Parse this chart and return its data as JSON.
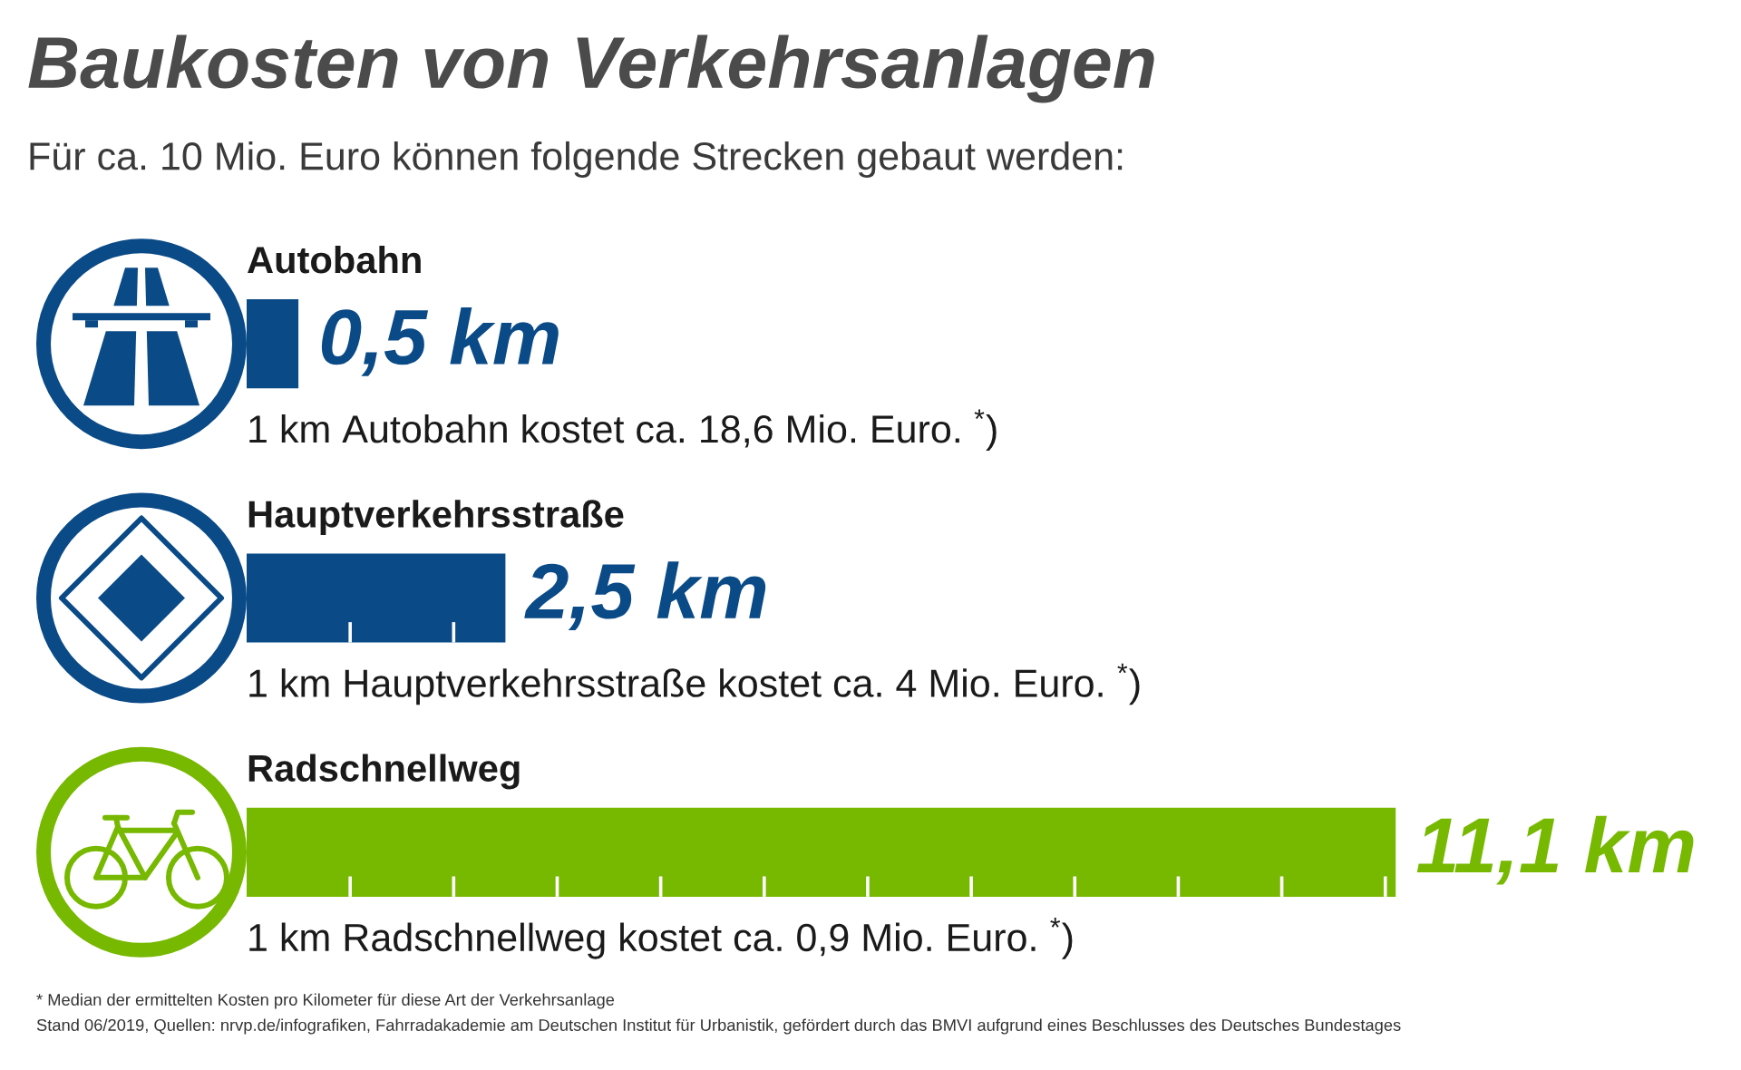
{
  "chart_data": {
    "type": "bar",
    "orientation": "horizontal",
    "title": "Baukosten von Verkehrsanlagen",
    "subtitle": "Für ca. 10 Mio. Euro können folgende Strecken gebaut werden:",
    "categories": [
      "Autobahn",
      "Hauptverkehrsstraße",
      "Radschnellweg"
    ],
    "values": [
      0.5,
      2.5,
      11.1
    ],
    "colors": [
      "#0a4a87",
      "#0a4a87",
      "#77b800"
    ],
    "value_labels": [
      "0,5 km",
      "2,5 km",
      "11,1 km"
    ],
    "xticks": [
      {
        "value": 1,
        "label": null
      },
      {
        "value": 2,
        "label": null
      },
      {
        "value": 3,
        "label": null
      },
      {
        "value": 4,
        "label": null
      },
      {
        "value": 5,
        "label": null
      },
      {
        "value": 6,
        "label": null
      },
      {
        "value": 7,
        "label": null
      },
      {
        "value": 8,
        "label": null
      },
      {
        "value": 9,
        "label": null
      },
      {
        "value": 10,
        "label": null
      },
      {
        "value": 11,
        "label": null
      }
    ],
    "tick_labels": "y",
    "annotations": [
      "1 km Autobahn kostet ca. 18,6 Mio. Euro. $^{*}$)",
      "1 km Hauptverkehrsstraße kostet ca. 4 Mio. Euro. $^{*}$)",
      "1 km Radschnellweg kostet ca. 0,9 Mio. Euro. $^{*}$)",
      "* Median der ermittelten Kosten pro Kilometer für diese Art der Verkehrsanlage",
      "Stand 06/2019, Quellen: nrvp.de/infografiken, Fahrradakademie am Deutschen Institut für Urbanistik, gefördert durch das BMVI aufgrund eines Beschlusses des Deutsches Bundestages"
    ]
  }
}
